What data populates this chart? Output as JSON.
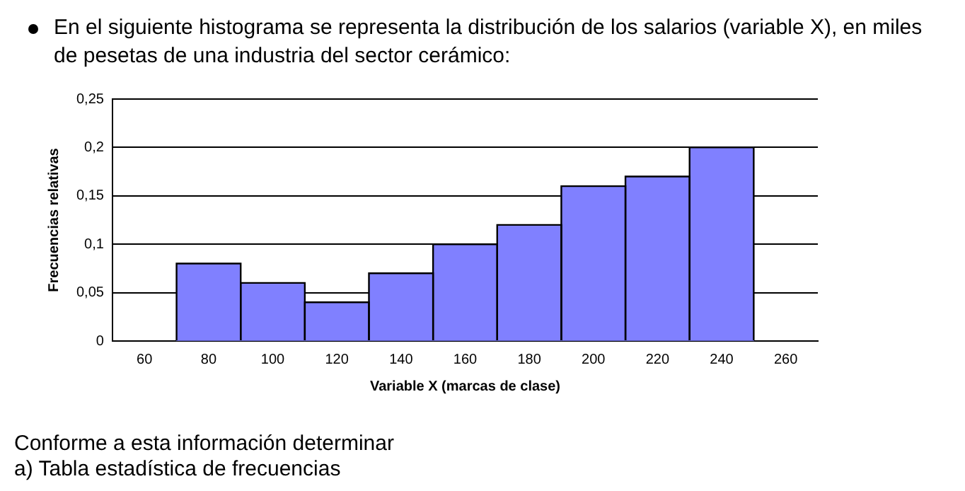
{
  "chart_data": {
    "type": "histogram",
    "title": "En el siguiente histograma se representa la distribución de los salarios (variable X), en miles de pesetas de una industria del sector cerámico:",
    "xlabel": "Variable X (marcas de clase)",
    "ylabel": "Frecuencias relativas",
    "bins": [
      70,
      90,
      110,
      130,
      150,
      170,
      190,
      210,
      230,
      250
    ],
    "values": [
      0.08,
      0.06,
      0.04,
      0.07,
      0.1,
      0.12,
      0.16,
      0.17,
      0.2
    ],
    "color": "#8080ff",
    "xlim": [
      50,
      270
    ],
    "xticks": [
      60,
      80,
      100,
      120,
      140,
      160,
      180,
      200,
      220,
      240,
      260
    ],
    "ylim": [
      0,
      0.25
    ],
    "yticks": [
      {
        "value": 0,
        "label": "0"
      },
      {
        "value": 0.05,
        "label": "0,05"
      },
      {
        "value": 0.1,
        "label": "0,1"
      },
      {
        "value": 0.15,
        "label": "0,15"
      },
      {
        "value": 0.2,
        "label": "0,2"
      },
      {
        "value": 0.25,
        "label": "0,25"
      }
    ],
    "grid": "y",
    "annotations": [
      "Conforme a esta información determinar",
      "a) Tabla estadística de frecuencias"
    ]
  }
}
